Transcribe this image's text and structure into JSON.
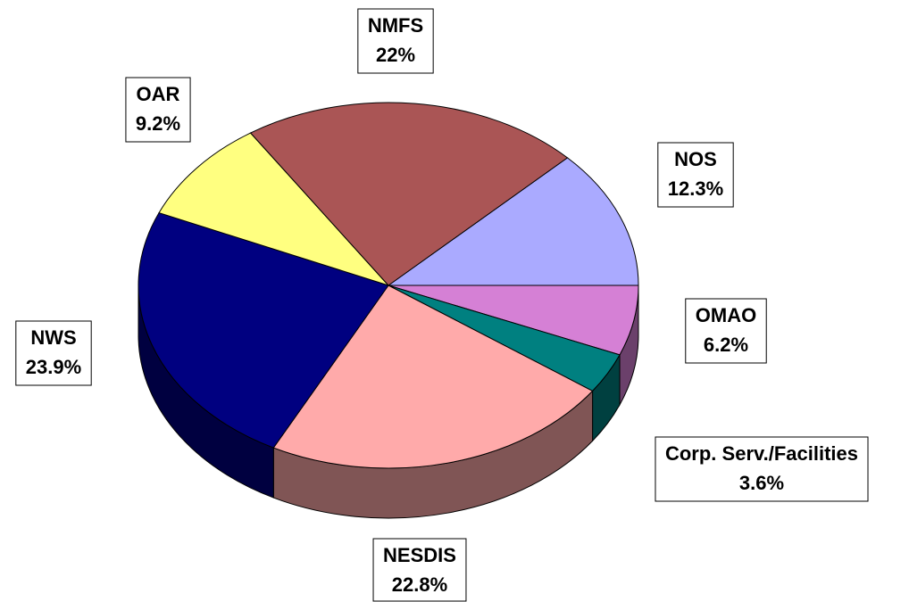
{
  "chart_data": {
    "type": "pie",
    "categories": [
      "NOS",
      "OMAO",
      "Corp. Serv./Facilities",
      "NESDIS",
      "NWS",
      "OAR",
      "NMFS"
    ],
    "values": [
      12.3,
      6.2,
      3.6,
      22.8,
      23.9,
      9.2,
      22
    ],
    "value_labels": [
      "12.3%",
      "6.2%",
      "3.6%",
      "22.8%",
      "23.9%",
      "9.2%",
      "22%"
    ],
    "colors": [
      "#aaaaff",
      "#d580d5",
      "#008080",
      "#ffaaaa",
      "#000080",
      "#ffff80",
      "#aa5555"
    ]
  }
}
